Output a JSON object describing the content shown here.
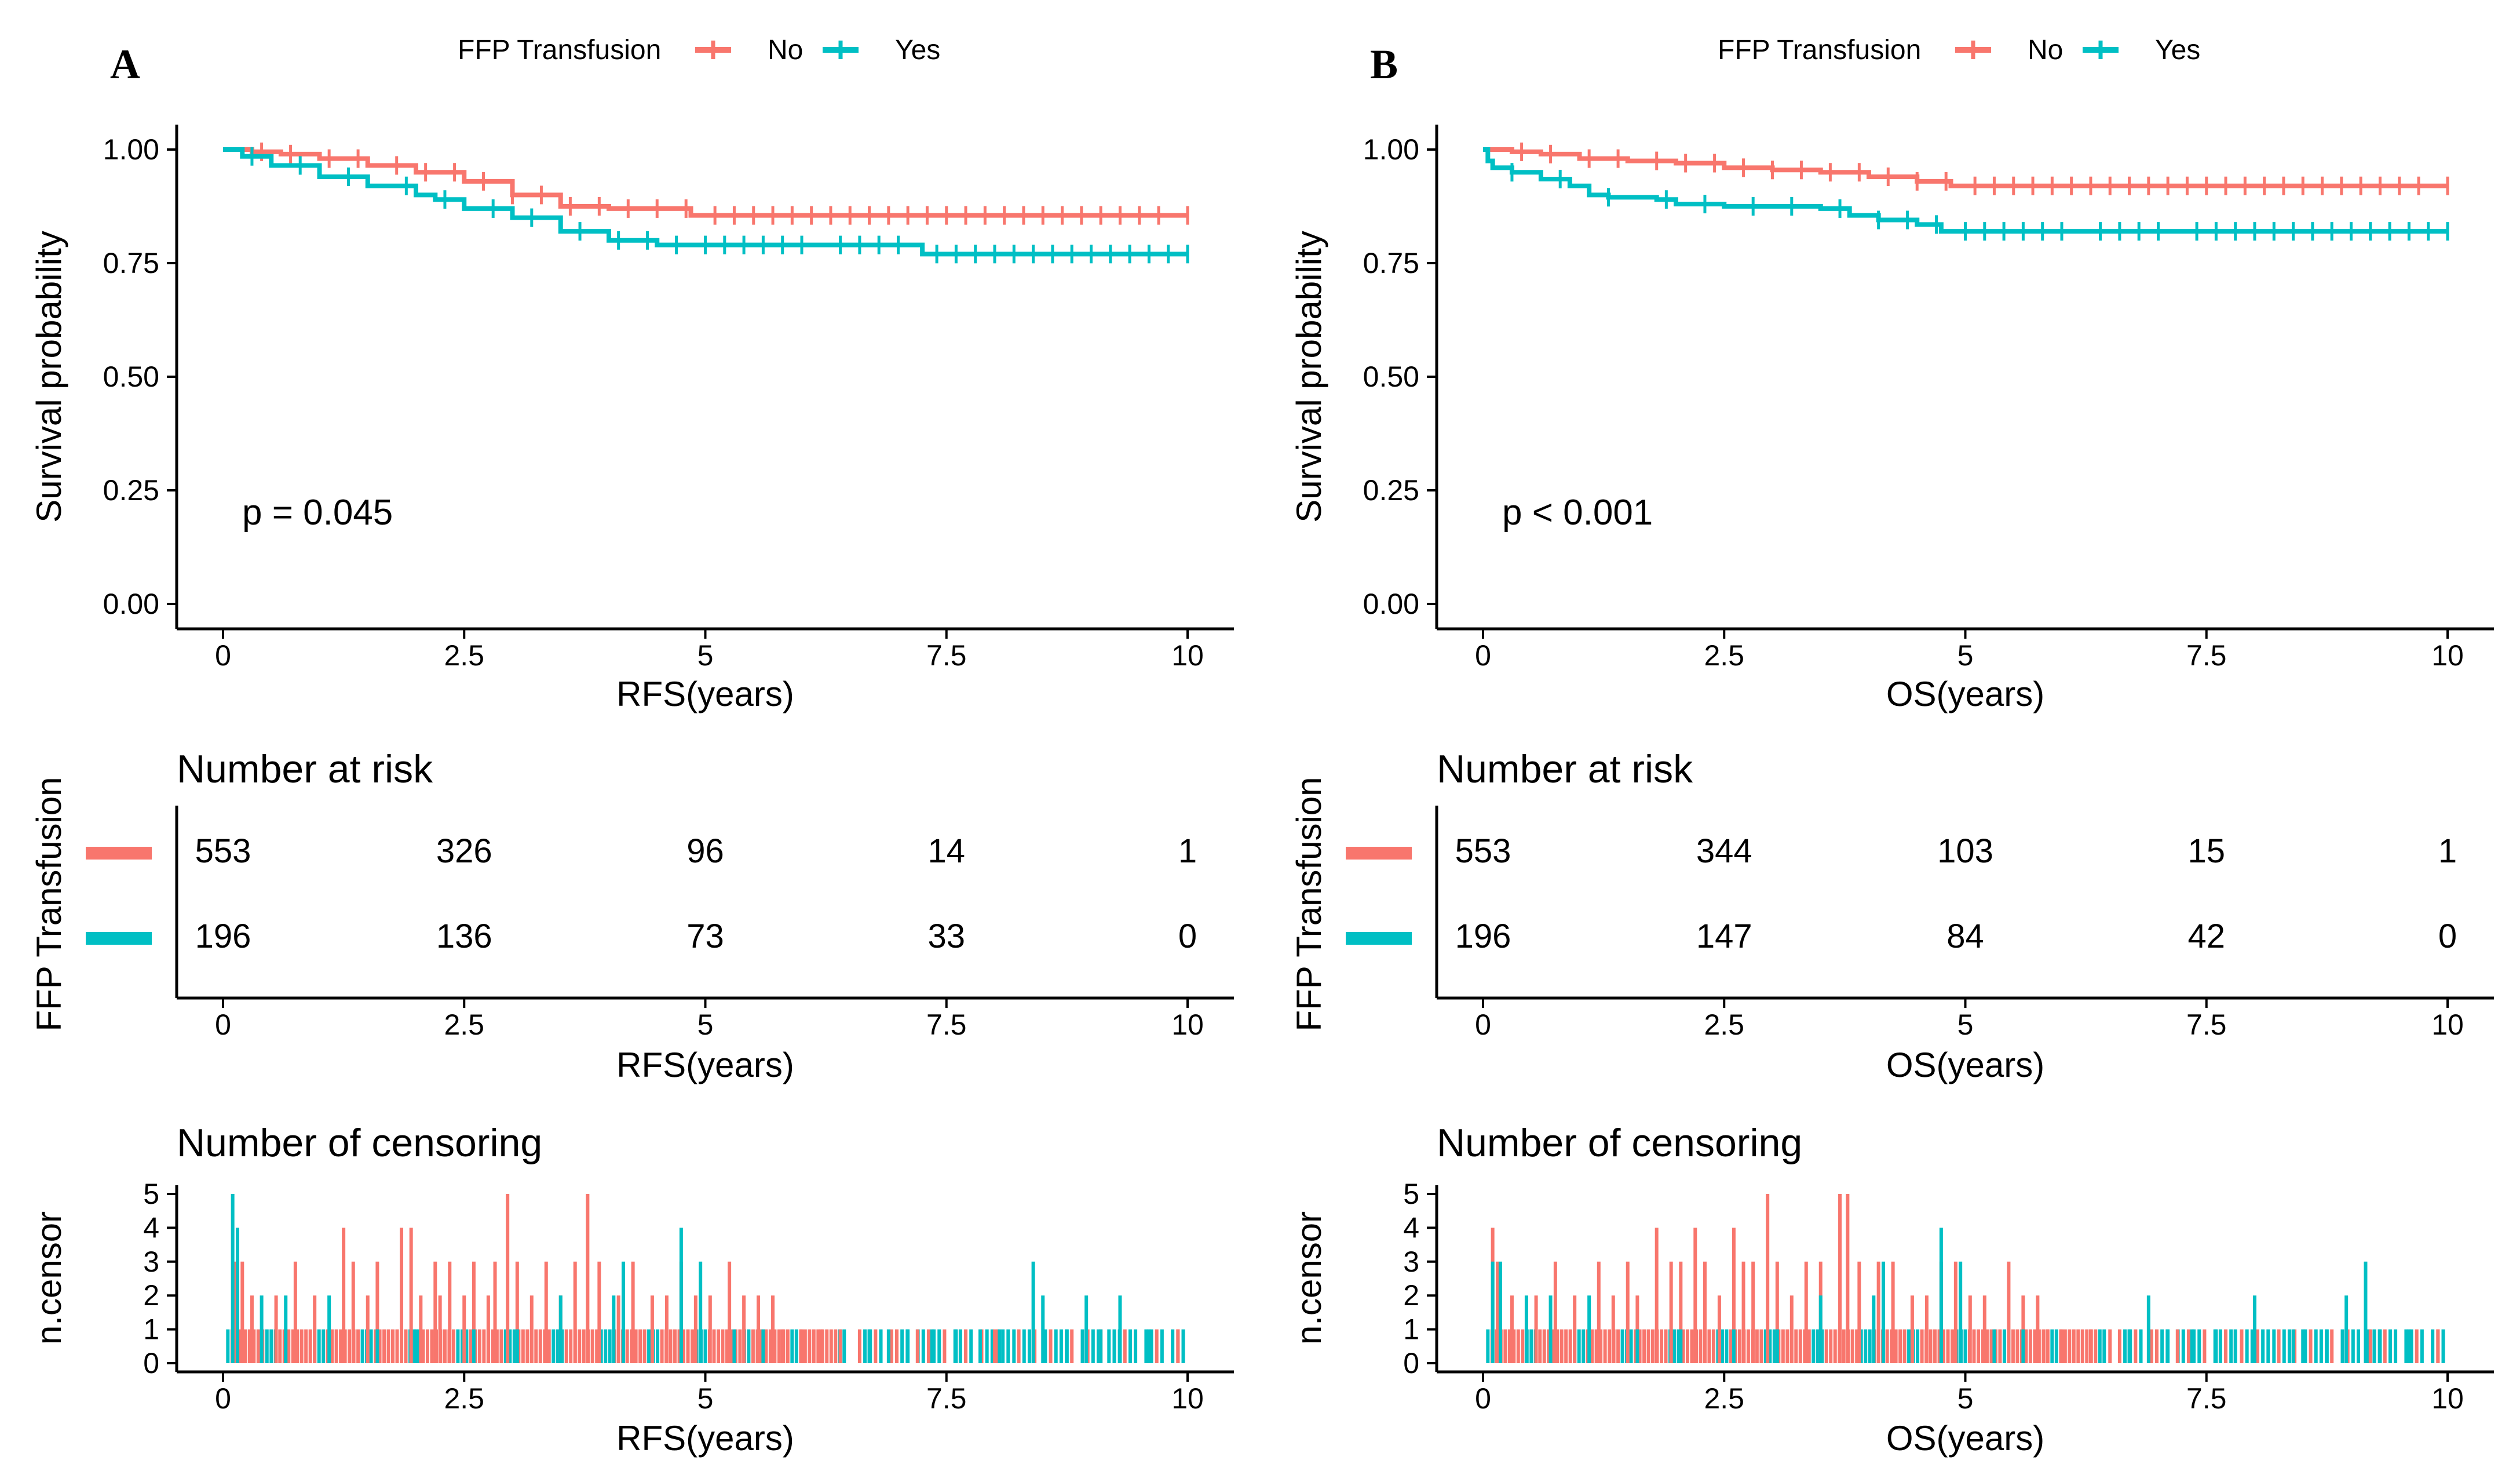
{
  "colors": {
    "no": "#F8766D",
    "yes": "#00BFC4",
    "axis": "#000000"
  },
  "chart_data": [
    {
      "panel": "A",
      "type": "line",
      "title": "",
      "legend": {
        "title": "FFP Transfusion",
        "labels": [
          "No",
          "Yes"
        ],
        "position": "top"
      },
      "xlabel": "RFS(years)",
      "ylabel": "Survival probability",
      "xlim": [
        0,
        10
      ],
      "ylim": [
        0,
        1
      ],
      "xticks": [
        "0",
        "2.5",
        "5",
        "7.5",
        "10"
      ],
      "yticks": [
        "0.00",
        "0.25",
        "0.50",
        "0.75",
        "1.00"
      ],
      "pvalue": "p = 0.045",
      "series": [
        {
          "name": "No",
          "x": [
            0,
            0.3,
            0.6,
            1.0,
            1.5,
            2.0,
            2.5,
            3.0,
            3.5,
            4.0,
            4.5,
            4.85,
            5.5,
            6,
            7,
            8,
            9,
            10
          ],
          "y": [
            1.0,
            0.995,
            0.99,
            0.98,
            0.965,
            0.95,
            0.93,
            0.9,
            0.875,
            0.87,
            0.87,
            0.855,
            0.855,
            0.855,
            0.855,
            0.855,
            0.855,
            0.855
          ]
        },
        {
          "name": "Yes",
          "x": [
            0,
            0.2,
            0.5,
            1.0,
            1.5,
            2.0,
            2.2,
            2.5,
            3.0,
            3.5,
            4.0,
            4.5,
            5,
            6,
            7,
            7.25,
            8,
            9,
            10
          ],
          "y": [
            1.0,
            0.985,
            0.965,
            0.94,
            0.92,
            0.9,
            0.89,
            0.87,
            0.85,
            0.82,
            0.8,
            0.79,
            0.79,
            0.79,
            0.79,
            0.77,
            0.77,
            0.77,
            0.77
          ]
        }
      ],
      "censor_marks": {
        "No": [
          0.4,
          0.7,
          1.1,
          1.4,
          1.8,
          2.1,
          2.4,
          2.7,
          3.0,
          3.3,
          3.6,
          3.9,
          4.2,
          4.5,
          4.8,
          5.1,
          5.3,
          5.5,
          5.7,
          5.9,
          6.1,
          6.3,
          6.5,
          6.7,
          6.9,
          7.1,
          7.3,
          7.5,
          7.7,
          7.9,
          8.1,
          8.3,
          8.5,
          8.7,
          8.9,
          9.1,
          9.3,
          9.5,
          9.7,
          10.0
        ],
        "Yes": [
          0.3,
          0.8,
          1.3,
          1.9,
          2.3,
          2.8,
          3.2,
          3.7,
          4.1,
          4.4,
          4.7,
          5.0,
          5.2,
          5.4,
          5.6,
          5.8,
          6.0,
          6.4,
          6.6,
          6.8,
          7.0,
          7.4,
          7.6,
          7.8,
          8.0,
          8.2,
          8.4,
          8.6,
          8.8,
          9.0,
          9.2,
          9.4,
          9.6,
          9.8,
          10.0
        ]
      },
      "risk_table": {
        "title": "Number at risk",
        "ylabel": "FFP Transfusion",
        "xlabel": "RFS(years)",
        "xticks": [
          "0",
          "2.5",
          "5",
          "7.5",
          "10"
        ],
        "rows": [
          {
            "group": "No",
            "values": [
              "553",
              "326",
              "96",
              "14",
              "1"
            ]
          },
          {
            "group": "Yes",
            "values": [
              "196",
              "136",
              "73",
              "33",
              "0"
            ]
          }
        ]
      },
      "censoring": {
        "title": "Number of censoring",
        "ylabel": "n.censor",
        "xlabel": "RFS(years)",
        "xticks": [
          "0",
          "2.5",
          "5",
          "7.5",
          "10"
        ],
        "yticks": [
          "0",
          "1",
          "2",
          "3",
          "4",
          "5"
        ],
        "ylim": [
          0,
          5
        ],
        "no_peaks": [
          [
            0.13,
            3
          ],
          [
            0.2,
            3
          ],
          [
            0.3,
            2
          ],
          [
            0.55,
            2
          ],
          [
            0.75,
            3
          ],
          [
            0.95,
            2
          ],
          [
            1.25,
            4
          ],
          [
            1.35,
            3
          ],
          [
            1.5,
            2
          ],
          [
            1.6,
            3
          ],
          [
            1.85,
            4
          ],
          [
            1.95,
            4
          ],
          [
            2.05,
            2
          ],
          [
            2.2,
            3
          ],
          [
            2.25,
            2
          ],
          [
            2.35,
            3
          ],
          [
            2.5,
            2
          ],
          [
            2.6,
            3
          ],
          [
            2.75,
            2
          ],
          [
            2.82,
            3
          ],
          [
            2.95,
            5
          ],
          [
            3.05,
            3
          ],
          [
            3.2,
            2
          ],
          [
            3.35,
            3
          ],
          [
            3.5,
            2
          ],
          [
            3.65,
            3
          ],
          [
            3.78,
            5
          ],
          [
            3.9,
            3
          ],
          [
            4.1,
            2
          ],
          [
            4.25,
            3
          ],
          [
            4.45,
            2
          ],
          [
            4.6,
            2
          ],
          [
            4.75,
            3
          ],
          [
            4.9,
            2
          ],
          [
            5.05,
            2
          ],
          [
            5.25,
            3
          ],
          [
            5.4,
            2
          ],
          [
            5.55,
            2
          ],
          [
            5.7,
            2
          ],
          [
            5.8,
            1
          ],
          [
            6.0,
            1
          ],
          [
            6.2,
            1
          ],
          [
            6.4,
            1
          ],
          [
            7.2,
            1
          ],
          [
            8.0,
            1
          ],
          [
            9.1,
            1
          ],
          [
            9.9,
            1
          ]
        ],
        "yes_peaks": [
          [
            0.1,
            5
          ],
          [
            0.15,
            4
          ],
          [
            0.4,
            2
          ],
          [
            0.65,
            2
          ],
          [
            1.1,
            2
          ],
          [
            1.6,
            1
          ],
          [
            2.0,
            1
          ],
          [
            2.6,
            1
          ],
          [
            3.05,
            1
          ],
          [
            3.5,
            2
          ],
          [
            4.05,
            2
          ],
          [
            4.15,
            3
          ],
          [
            4.75,
            4
          ],
          [
            4.95,
            3
          ],
          [
            5.3,
            1
          ],
          [
            5.6,
            1
          ],
          [
            6.7,
            1
          ],
          [
            6.9,
            1
          ],
          [
            7.1,
            1
          ],
          [
            7.35,
            1
          ],
          [
            7.6,
            1
          ],
          [
            7.85,
            1
          ],
          [
            8.05,
            1
          ],
          [
            8.2,
            1
          ],
          [
            8.4,
            3
          ],
          [
            8.5,
            2
          ],
          [
            8.75,
            1
          ],
          [
            8.95,
            2
          ],
          [
            9.1,
            1
          ],
          [
            9.3,
            2
          ],
          [
            9.6,
            1
          ]
        ]
      }
    },
    {
      "panel": "B",
      "type": "line",
      "title": "",
      "legend": {
        "title": "FFP Transfusion",
        "labels": [
          "No",
          "Yes"
        ],
        "position": "top"
      },
      "xlabel": "OS(years)",
      "ylabel": "Survival probability",
      "xlim": [
        0,
        10
      ],
      "ylim": [
        0,
        1
      ],
      "xticks": [
        "0",
        "2.5",
        "5",
        "7.5",
        "10"
      ],
      "yticks": [
        "0.00",
        "0.25",
        "0.50",
        "0.75",
        "1.00"
      ],
      "pvalue": "p < 0.001",
      "series": [
        {
          "name": "No",
          "x": [
            0,
            0.3,
            0.6,
            1.0,
            1.5,
            2.0,
            2.5,
            3.0,
            3.5,
            4.0,
            4.5,
            4.85,
            5.5,
            6,
            7,
            8,
            9,
            10
          ],
          "y": [
            1.0,
            0.995,
            0.99,
            0.98,
            0.975,
            0.97,
            0.96,
            0.955,
            0.95,
            0.94,
            0.93,
            0.92,
            0.92,
            0.92,
            0.92,
            0.92,
            0.92,
            0.92
          ]
        },
        {
          "name": "Yes",
          "x": [
            0,
            0.05,
            0.1,
            0.3,
            0.6,
            0.9,
            1.1,
            1.3,
            1.5,
            1.8,
            2.0,
            2.5,
            3.0,
            3.5,
            3.8,
            4.1,
            4.5,
            4.75,
            5,
            6,
            7,
            8,
            9,
            10
          ],
          "y": [
            1.0,
            0.975,
            0.96,
            0.95,
            0.935,
            0.92,
            0.9,
            0.895,
            0.895,
            0.89,
            0.88,
            0.875,
            0.875,
            0.87,
            0.855,
            0.845,
            0.835,
            0.82,
            0.82,
            0.82,
            0.82,
            0.82,
            0.82,
            0.82
          ]
        }
      ],
      "censor_marks": {
        "No": [
          0.4,
          0.7,
          1.1,
          1.4,
          1.8,
          2.1,
          2.4,
          2.7,
          3.0,
          3.3,
          3.6,
          3.9,
          4.2,
          4.5,
          4.8,
          5.1,
          5.3,
          5.5,
          5.7,
          5.9,
          6.1,
          6.3,
          6.5,
          6.7,
          6.9,
          7.1,
          7.3,
          7.5,
          7.7,
          7.9,
          8.1,
          8.3,
          8.5,
          8.7,
          8.9,
          9.1,
          9.3,
          9.5,
          9.7,
          10.0
        ],
        "Yes": [
          0.3,
          0.8,
          1.3,
          1.9,
          2.3,
          2.8,
          3.2,
          3.7,
          4.1,
          4.4,
          4.7,
          5.0,
          5.2,
          5.4,
          5.6,
          5.8,
          6.0,
          6.4,
          6.6,
          6.8,
          7.0,
          7.4,
          7.6,
          7.8,
          8.0,
          8.2,
          8.4,
          8.6,
          8.8,
          9.0,
          9.2,
          9.4,
          9.6,
          9.8,
          10.0
        ]
      },
      "risk_table": {
        "title": "Number at risk",
        "ylabel": "FFP Transfusion",
        "xlabel": "OS(years)",
        "xticks": [
          "0",
          "2.5",
          "5",
          "7.5",
          "10"
        ],
        "rows": [
          {
            "group": "No",
            "values": [
              "553",
              "344",
              "103",
              "15",
              "1"
            ]
          },
          {
            "group": "Yes",
            "values": [
              "196",
              "147",
              "84",
              "42",
              "0"
            ]
          }
        ]
      },
      "censoring": {
        "title": "Number of censoring",
        "ylabel": "n.censor",
        "xlabel": "OS(years)",
        "xticks": [
          "0",
          "2.5",
          "5",
          "7.5",
          "10"
        ],
        "yticks": [
          "0",
          "1",
          "2",
          "3",
          "4",
          "5"
        ],
        "ylim": [
          0,
          5
        ],
        "no_peaks": [
          [
            0.1,
            4
          ],
          [
            0.15,
            3
          ],
          [
            0.3,
            2
          ],
          [
            0.55,
            2
          ],
          [
            0.75,
            3
          ],
          [
            0.95,
            2
          ],
          [
            1.2,
            3
          ],
          [
            1.35,
            2
          ],
          [
            1.5,
            3
          ],
          [
            1.6,
            2
          ],
          [
            1.8,
            4
          ],
          [
            1.95,
            3
          ],
          [
            2.05,
            3
          ],
          [
            2.2,
            4
          ],
          [
            2.3,
            3
          ],
          [
            2.45,
            2
          ],
          [
            2.6,
            4
          ],
          [
            2.7,
            3
          ],
          [
            2.8,
            3
          ],
          [
            2.95,
            5
          ],
          [
            3.05,
            3
          ],
          [
            3.2,
            2
          ],
          [
            3.35,
            3
          ],
          [
            3.5,
            3
          ],
          [
            3.7,
            5
          ],
          [
            3.78,
            5
          ],
          [
            3.9,
            3
          ],
          [
            4.1,
            3
          ],
          [
            4.25,
            3
          ],
          [
            4.45,
            2
          ],
          [
            4.6,
            2
          ],
          [
            4.75,
            3
          ],
          [
            4.9,
            3
          ],
          [
            5.05,
            2
          ],
          [
            5.2,
            2
          ],
          [
            5.45,
            3
          ],
          [
            5.6,
            2
          ],
          [
            5.75,
            2
          ],
          [
            5.85,
            1
          ],
          [
            6.0,
            1
          ],
          [
            6.3,
            1
          ],
          [
            6.5,
            1
          ],
          [
            7.2,
            1
          ],
          [
            8.0,
            1
          ],
          [
            9.2,
            1
          ],
          [
            9.9,
            1
          ]
        ],
        "yes_peaks": [
          [
            0.1,
            3
          ],
          [
            0.18,
            3
          ],
          [
            0.45,
            2
          ],
          [
            0.7,
            2
          ],
          [
            1.1,
            2
          ],
          [
            1.6,
            1
          ],
          [
            2.05,
            1
          ],
          [
            2.6,
            1
          ],
          [
            3.05,
            1
          ],
          [
            3.5,
            2
          ],
          [
            4.05,
            2
          ],
          [
            4.15,
            3
          ],
          [
            4.75,
            4
          ],
          [
            4.95,
            3
          ],
          [
            5.3,
            1
          ],
          [
            5.6,
            1
          ],
          [
            6.7,
            1
          ],
          [
            6.9,
            2
          ],
          [
            7.1,
            1
          ],
          [
            7.35,
            1
          ],
          [
            7.6,
            1
          ],
          [
            7.8,
            1
          ],
          [
            8.0,
            2
          ],
          [
            8.2,
            1
          ],
          [
            8.4,
            1
          ],
          [
            8.5,
            1
          ],
          [
            8.75,
            1
          ],
          [
            8.95,
            2
          ],
          [
            9.15,
            3
          ],
          [
            9.3,
            1
          ],
          [
            9.6,
            1
          ]
        ]
      }
    }
  ]
}
